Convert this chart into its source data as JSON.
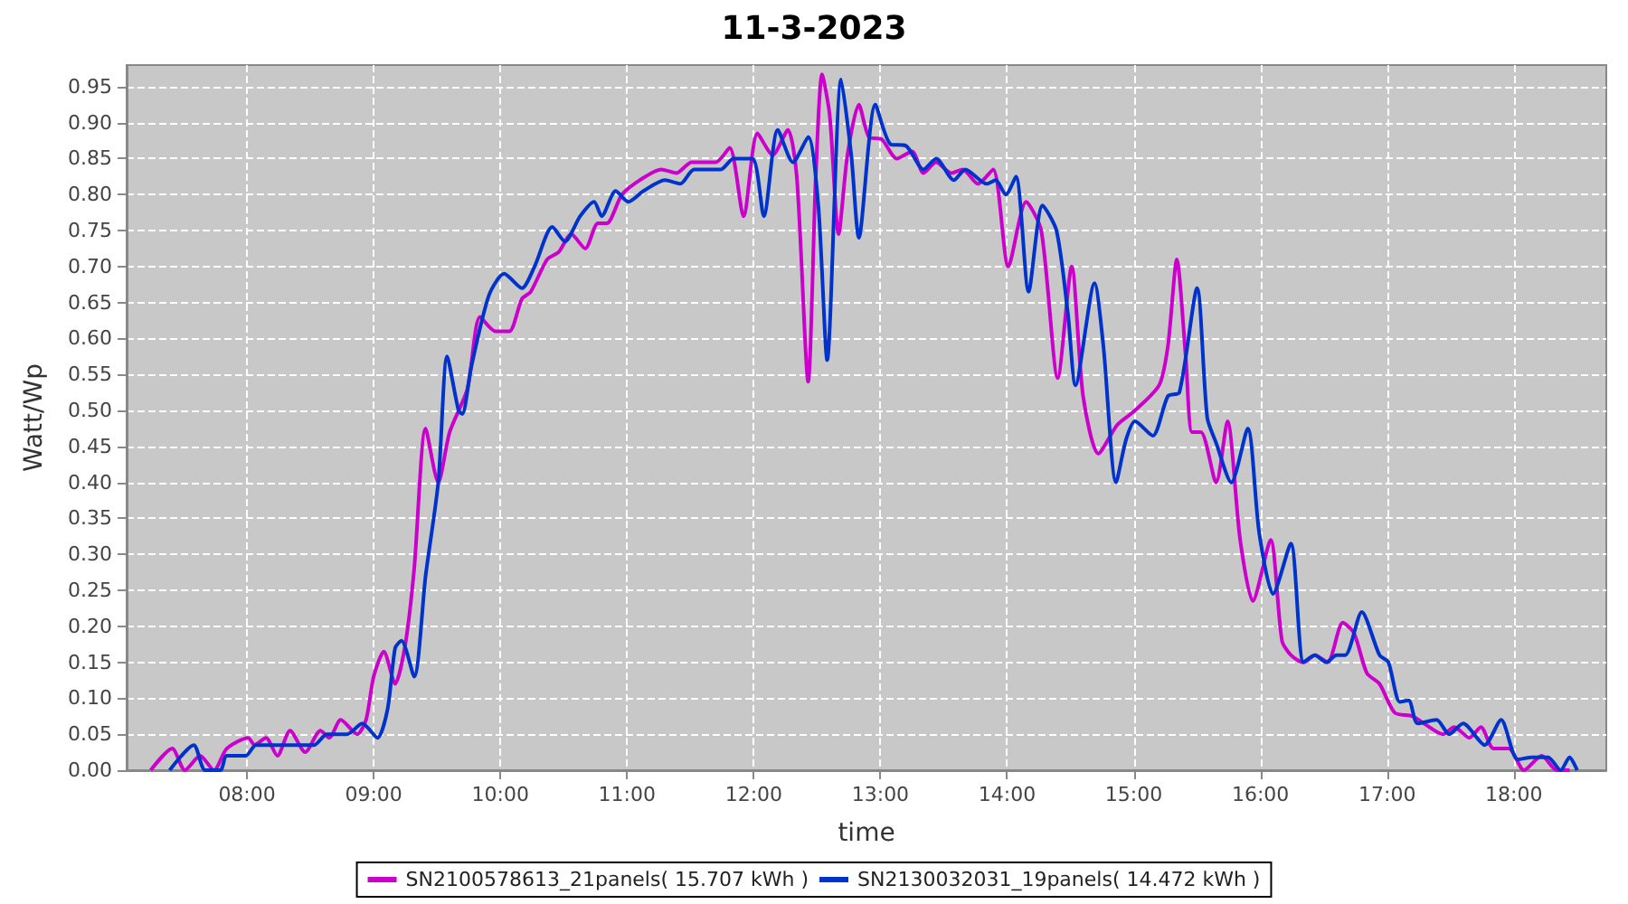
{
  "chart_data": {
    "type": "line",
    "title": "11-3-2023",
    "xlabel": "time",
    "ylabel": "Watt/Wp",
    "xlim": [
      7.05,
      18.73
    ],
    "xticks": [
      {
        "value": 8,
        "label": "08:00"
      },
      {
        "value": 9,
        "label": "09:00"
      },
      {
        "value": 10,
        "label": "10:00"
      },
      {
        "value": 11,
        "label": "11:00"
      },
      {
        "value": 12,
        "label": "12:00"
      },
      {
        "value": 13,
        "label": "13:00"
      },
      {
        "value": 14,
        "label": "14:00"
      },
      {
        "value": 15,
        "label": "15:00"
      },
      {
        "value": 16,
        "label": "16:00"
      },
      {
        "value": 17,
        "label": "17:00"
      },
      {
        "value": 18,
        "label": "18:00"
      }
    ],
    "ylim": [
      0,
      0.98
    ],
    "yticks": [
      {
        "value": 0,
        "label": "0.00"
      },
      {
        "value": 0.05,
        "label": "0.05"
      },
      {
        "value": 0.1,
        "label": "0.10"
      },
      {
        "value": 0.15,
        "label": "0.15"
      },
      {
        "value": 0.2,
        "label": "0.20"
      },
      {
        "value": 0.25,
        "label": "0.25"
      },
      {
        "value": 0.3,
        "label": "0.30"
      },
      {
        "value": 0.35,
        "label": "0.35"
      },
      {
        "value": 0.4,
        "label": "0.40"
      },
      {
        "value": 0.45,
        "label": "0.45"
      },
      {
        "value": 0.5,
        "label": "0.50"
      },
      {
        "value": 0.55,
        "label": "0.55"
      },
      {
        "value": 0.6,
        "label": "0.60"
      },
      {
        "value": 0.65,
        "label": "0.65"
      },
      {
        "value": 0.7,
        "label": "0.70"
      },
      {
        "value": 0.75,
        "label": "0.75"
      },
      {
        "value": 0.8,
        "label": "0.80"
      },
      {
        "value": 0.85,
        "label": "0.85"
      },
      {
        "value": 0.9,
        "label": "0.90"
      },
      {
        "value": 0.95,
        "label": "0.95"
      }
    ],
    "grid": true,
    "legend": "bottom",
    "series": [
      {
        "name": "SN2100578613_21panels( 15.707 kWh )",
        "color": "#cc00cc",
        "x": [
          7.24,
          7.41,
          7.51,
          7.63,
          7.74,
          7.84,
          8.01,
          8.06,
          8.15,
          8.24,
          8.34,
          8.46,
          8.58,
          8.65,
          8.74,
          8.87,
          8.94,
          9.0,
          9.08,
          9.17,
          9.25,
          9.32,
          9.41,
          9.51,
          9.6,
          9.74,
          9.84,
          9.96,
          10.07,
          10.17,
          10.24,
          10.37,
          10.46,
          10.56,
          10.67,
          10.77,
          10.84,
          10.96,
          11.1,
          11.27,
          11.39,
          11.51,
          11.7,
          11.81,
          11.92,
          12.03,
          12.15,
          12.27,
          12.34,
          12.43,
          12.49,
          12.54,
          12.6,
          12.67,
          12.74,
          12.83,
          12.91,
          13.01,
          13.13,
          13.25,
          13.34,
          13.44,
          13.56,
          13.65,
          13.77,
          13.89,
          14.01,
          14.15,
          14.27,
          14.4,
          14.51,
          14.6,
          14.72,
          14.87,
          15.01,
          15.2,
          15.27,
          15.34,
          15.41,
          15.46,
          15.53,
          15.65,
          15.74,
          15.84,
          15.94,
          16.08,
          16.17,
          16.24,
          16.34,
          16.43,
          16.53,
          16.65,
          16.74,
          16.84,
          16.94,
          17.06,
          17.2,
          17.29,
          17.44,
          17.53,
          17.65,
          17.74,
          17.84,
          17.96,
          18.08,
          18.22,
          18.34,
          18.44
        ],
        "values": [
          0,
          0.03,
          0,
          0.02,
          0,
          0.03,
          0.045,
          0.035,
          0.045,
          0.02,
          0.055,
          0.025,
          0.055,
          0.045,
          0.07,
          0.05,
          0.07,
          0.13,
          0.165,
          0.12,
          0.175,
          0.28,
          0.475,
          0.4,
          0.47,
          0.53,
          0.63,
          0.61,
          0.61,
          0.655,
          0.665,
          0.71,
          0.72,
          0.745,
          0.725,
          0.76,
          0.76,
          0.8,
          0.82,
          0.835,
          0.83,
          0.845,
          0.845,
          0.865,
          0.77,
          0.885,
          0.855,
          0.89,
          0.825,
          0.54,
          0.825,
          0.967,
          0.91,
          0.745,
          0.855,
          0.925,
          0.88,
          0.877,
          0.85,
          0.86,
          0.83,
          0.845,
          0.83,
          0.835,
          0.815,
          0.835,
          0.7,
          0.79,
          0.75,
          0.545,
          0.7,
          0.52,
          0.44,
          0.48,
          0.5,
          0.535,
          0.59,
          0.71,
          0.575,
          0.47,
          0.47,
          0.4,
          0.485,
          0.32,
          0.235,
          0.32,
          0.18,
          0.16,
          0.15,
          0.16,
          0.15,
          0.205,
          0.19,
          0.135,
          0.12,
          0.08,
          0.075,
          0.065,
          0.05,
          0.06,
          0.045,
          0.06,
          0.03,
          0.03,
          0,
          0.02,
          0,
          0
        ]
      },
      {
        "name": "SN2130032031_19panels( 14.472 kWh )",
        "color": "#0033cc",
        "x": [
          7.39,
          7.58,
          7.67,
          7.79,
          7.84,
          7.99,
          8.07,
          8.17,
          8.53,
          8.63,
          8.79,
          8.91,
          9.03,
          9.11,
          9.17,
          9.22,
          9.32,
          9.41,
          9.51,
          9.58,
          9.67,
          9.7,
          9.77,
          9.91,
          10.03,
          10.17,
          10.27,
          10.41,
          10.51,
          10.63,
          10.74,
          10.8,
          10.91,
          11.01,
          11.13,
          11.3,
          11.42,
          11.53,
          11.74,
          11.84,
          11.99,
          12.08,
          12.19,
          12.31,
          12.43,
          12.51,
          12.58,
          12.69,
          12.77,
          12.83,
          12.96,
          13.08,
          13.2,
          13.34,
          13.44,
          13.58,
          13.67,
          13.84,
          13.91,
          13.99,
          14.07,
          14.17,
          14.28,
          14.39,
          14.48,
          14.54,
          14.69,
          14.76,
          14.86,
          14.94,
          15.01,
          15.15,
          15.27,
          15.36,
          15.5,
          15.58,
          15.65,
          15.77,
          15.9,
          15.99,
          16.1,
          16.24,
          16.34,
          16.43,
          16.52,
          16.6,
          16.67,
          16.8,
          16.94,
          17.01,
          17.1,
          17.17,
          17.24,
          17.39,
          17.49,
          17.6,
          17.77,
          17.9,
          18.03,
          18.15,
          18.27,
          18.37,
          18.44,
          18.5
        ],
        "values": [
          0,
          0.035,
          0,
          0,
          0.02,
          0.02,
          0.035,
          0.035,
          0.035,
          0.05,
          0.05,
          0.065,
          0.045,
          0.085,
          0.17,
          0.18,
          0.13,
          0.27,
          0.4,
          0.575,
          0.5,
          0.495,
          0.56,
          0.66,
          0.69,
          0.67,
          0.7,
          0.755,
          0.735,
          0.77,
          0.79,
          0.77,
          0.805,
          0.79,
          0.805,
          0.82,
          0.815,
          0.835,
          0.835,
          0.85,
          0.85,
          0.77,
          0.89,
          0.845,
          0.88,
          0.785,
          0.57,
          0.96,
          0.855,
          0.74,
          0.925,
          0.87,
          0.868,
          0.835,
          0.85,
          0.82,
          0.835,
          0.815,
          0.82,
          0.8,
          0.825,
          0.665,
          0.785,
          0.75,
          0.635,
          0.535,
          0.677,
          0.59,
          0.4,
          0.46,
          0.485,
          0.465,
          0.52,
          0.525,
          0.67,
          0.49,
          0.455,
          0.4,
          0.475,
          0.33,
          0.245,
          0.315,
          0.15,
          0.16,
          0.15,
          0.16,
          0.16,
          0.22,
          0.16,
          0.15,
          0.095,
          0.097,
          0.065,
          0.07,
          0.05,
          0.065,
          0.035,
          0.07,
          0.015,
          0.018,
          0.018,
          0,
          0.018,
          0
        ]
      }
    ]
  }
}
